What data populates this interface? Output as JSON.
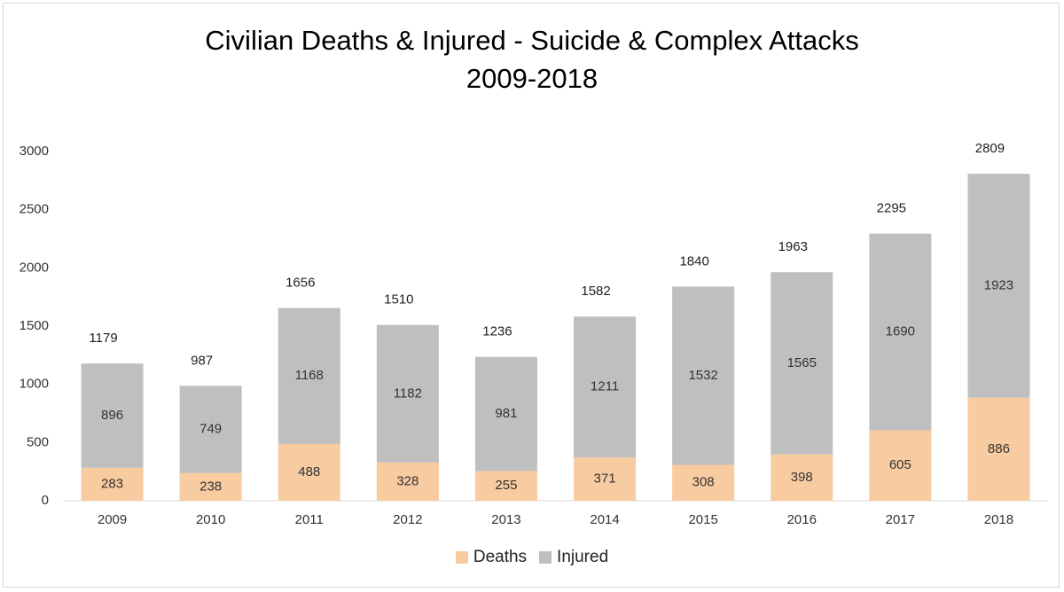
{
  "chart_data": {
    "type": "bar",
    "stacked": true,
    "title": "Civilian Deaths & Injured - Suicide & Complex Attacks",
    "subtitle": "2009-2018",
    "categories": [
      "2009",
      "2010",
      "2011",
      "2012",
      "2013",
      "2014",
      "2015",
      "2016",
      "2017",
      "2018"
    ],
    "series": [
      {
        "name": "Deaths",
        "color": "#f8cba0",
        "values": [
          283,
          238,
          488,
          328,
          255,
          371,
          308,
          398,
          605,
          886
        ]
      },
      {
        "name": "Injured",
        "color": "#bfbfbf",
        "values": [
          896,
          749,
          1168,
          1182,
          981,
          1211,
          1532,
          1565,
          1690,
          1923
        ]
      }
    ],
    "totals": [
      1179,
      987,
      1656,
      1510,
      1236,
      1582,
      1840,
      1963,
      2295,
      2809
    ],
    "ylim": [
      0,
      3000
    ],
    "yticks": [
      "0",
      "500",
      "1000",
      "1500",
      "2000",
      "2500",
      "3000"
    ],
    "ytick_values": [
      0,
      500,
      1000,
      1500,
      2000,
      2500,
      3000
    ],
    "legend_position": "bottom",
    "xlabel": "",
    "ylabel": ""
  }
}
